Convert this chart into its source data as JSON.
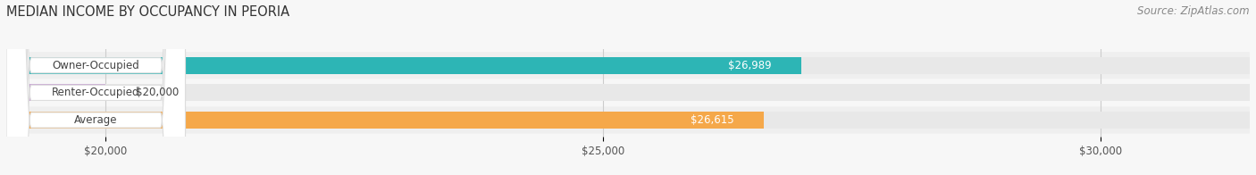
{
  "title": "MEDIAN INCOME BY OCCUPANCY IN PEORIA",
  "source": "Source: ZipAtlas.com",
  "categories": [
    "Owner-Occupied",
    "Renter-Occupied",
    "Average"
  ],
  "values": [
    26989,
    20000,
    26615
  ],
  "bar_colors": [
    "#2db5b5",
    "#c9a8d4",
    "#f5a84a"
  ],
  "value_labels": [
    "$26,989",
    "$20,000",
    "$26,615"
  ],
  "xmin": 19000,
  "xmax": 31500,
  "data_min": 19000,
  "xticks": [
    20000,
    25000,
    30000
  ],
  "xtick_labels": [
    "$20,000",
    "$25,000",
    "$30,000"
  ],
  "bar_height": 0.62,
  "background_color": "#f7f7f7",
  "bar_bg_color": "#e8e8e8",
  "row_bg_colors": [
    "#efefef",
    "#f7f7f7",
    "#efefef"
  ],
  "title_fontsize": 10.5,
  "source_fontsize": 8.5,
  "label_fontsize": 8.5,
  "value_fontsize": 8.5,
  "tick_fontsize": 8.5
}
